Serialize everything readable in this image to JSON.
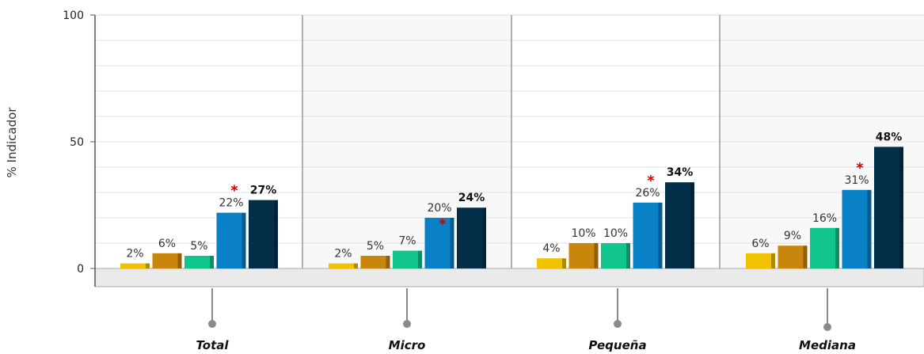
{
  "chart_data": {
    "type": "bar",
    "ylabel": "% Indicador",
    "ylim": [
      0,
      100
    ],
    "yticks": [
      0,
      50,
      100
    ],
    "grid": true,
    "categories": [
      "Total",
      "Micro",
      "Pequeña",
      "Mediana"
    ],
    "series": [
      {
        "color": "#f2c200",
        "values": [
          2,
          2,
          4,
          6
        ],
        "labels": [
          "2%",
          "2%",
          "4%",
          "6%"
        ]
      },
      {
        "color": "#c8860d",
        "values": [
          6,
          5,
          10,
          9
        ],
        "labels": [
          "6%",
          "5%",
          "10%",
          "9%"
        ]
      },
      {
        "color": "#10c48c",
        "values": [
          5,
          7,
          10,
          16
        ],
        "labels": [
          "5%",
          "7%",
          "10%",
          "16%"
        ]
      },
      {
        "color": "#0a80c6",
        "values": [
          22,
          20,
          26,
          31
        ],
        "labels": [
          "22%",
          "20%",
          "26%",
          "31%"
        ],
        "asterisk": true
      },
      {
        "color": "#032f49",
        "values": [
          27,
          24,
          34,
          48
        ],
        "labels": [
          "27%",
          "24%",
          "34%",
          "48%"
        ],
        "bold": true
      }
    ],
    "asterisk_symbol": "*",
    "asterisk_color": "#d00000",
    "panel_colors": [
      "#ffffff",
      "#f8f8f8",
      "#ffffff",
      "#f8f8f8"
    ],
    "floor_color": "#eaeaea"
  }
}
